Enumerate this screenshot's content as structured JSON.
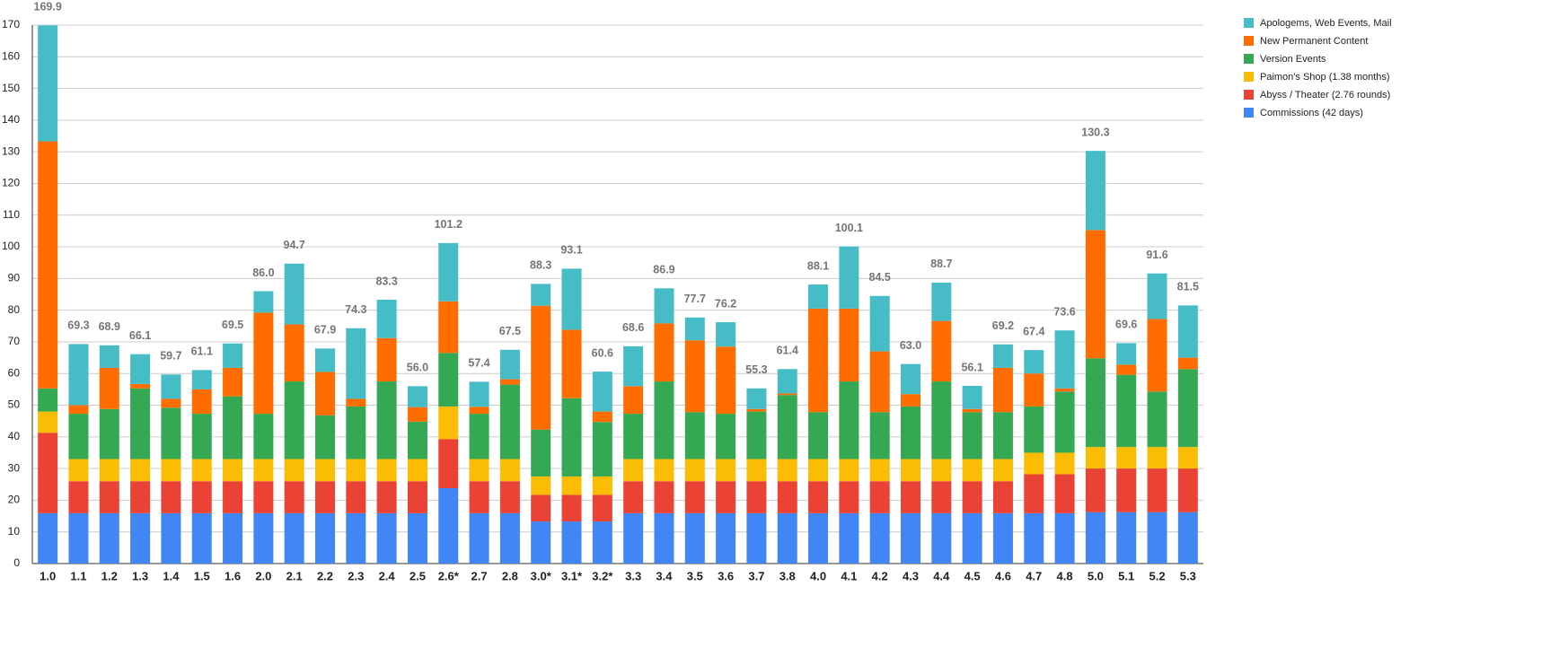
{
  "chart_data": {
    "type": "stacked_bar",
    "categories": [
      "1.0",
      "1.1",
      "1.2",
      "1.3",
      "1.4",
      "1.5",
      "1.6",
      "2.0",
      "2.1",
      "2.2",
      "2.3",
      "2.4",
      "2.5",
      "2.6*",
      "2.7",
      "2.8",
      "3.0*",
      "3.1*",
      "3.2*",
      "3.3",
      "3.4",
      "3.5",
      "3.6",
      "3.7",
      "3.8",
      "4.0",
      "4.1",
      "4.2",
      "4.3",
      "4.4",
      "4.5",
      "4.6",
      "4.7",
      "4.8",
      "5.0",
      "5.1",
      "5.2",
      "5.3"
    ],
    "series": [
      {
        "name": "Apologems, Web Events, Mail",
        "color": "#46bdc6",
        "values": [
          36.6,
          19.3,
          7.1,
          9.4,
          7.7,
          6.1,
          7.7,
          6.8,
          19.2,
          7.4,
          22.3,
          12.1,
          6.6,
          18.4,
          7.9,
          9.3,
          6.9,
          19.3,
          12.6,
          12.6,
          11.1,
          7.2,
          7.7,
          6.5,
          7.7,
          7.6,
          19.6,
          17.5,
          9.5,
          12.1,
          7.3,
          7.4,
          7.4,
          18.3,
          25.0,
          6.8,
          14.4,
          16.5
        ]
      },
      {
        "name": "New Permanent Content",
        "color": "#ff6d01",
        "values": [
          78.0,
          2.7,
          13.0,
          1.4,
          2.8,
          7.7,
          9.0,
          31.9,
          18.0,
          13.7,
          2.4,
          13.7,
          4.6,
          16.3,
          2.2,
          1.7,
          39.1,
          21.6,
          3.3,
          8.7,
          18.3,
          22.7,
          21.2,
          0.8,
          0.5,
          32.7,
          23.0,
          19.2,
          3.9,
          19.1,
          1.0,
          14.0,
          10.4,
          1.0,
          40.5,
          3.2,
          22.9,
          3.6
        ]
      },
      {
        "name": "Version Events",
        "color": "#34a853",
        "values": [
          7.3,
          14.3,
          15.8,
          22.3,
          16.2,
          14.3,
          19.8,
          14.3,
          24.5,
          13.8,
          16.6,
          24.5,
          11.8,
          16.9,
          14.3,
          23.5,
          14.8,
          24.7,
          17.2,
          14.3,
          24.5,
          14.8,
          14.3,
          15.0,
          20.2,
          14.8,
          24.5,
          14.8,
          16.6,
          24.5,
          14.8,
          14.8,
          14.6,
          19.3,
          28.0,
          22.8,
          17.5,
          24.6
        ]
      },
      {
        "name": "Paimon's Shop (1.38 months)",
        "color": "#fbbc04",
        "values": [
          6.7,
          7.0,
          7.0,
          7.0,
          7.0,
          7.0,
          7.0,
          7.0,
          7.0,
          7.0,
          7.0,
          7.0,
          7.0,
          10.3,
          7.0,
          7.0,
          5.8,
          5.8,
          5.8,
          7.0,
          7.0,
          7.0,
          7.0,
          7.0,
          7.0,
          7.0,
          7.0,
          7.0,
          7.0,
          7.0,
          7.0,
          7.0,
          6.8,
          6.8,
          6.8,
          6.8,
          6.8,
          6.8
        ]
      },
      {
        "name": "Abyss / Theater (2.76 rounds)",
        "color": "#ea4335",
        "values": [
          25.4,
          10.1,
          10.1,
          10.1,
          10.1,
          10.1,
          10.1,
          10.1,
          10.1,
          10.1,
          10.1,
          10.1,
          10.1,
          15.5,
          10.1,
          10.1,
          8.4,
          8.4,
          8.4,
          10.1,
          10.1,
          10.1,
          10.1,
          10.1,
          10.1,
          10.1,
          10.1,
          10.1,
          10.1,
          10.1,
          10.1,
          10.1,
          12.3,
          12.3,
          13.8,
          13.8,
          13.8,
          13.8
        ]
      },
      {
        "name": "Commissions (42 days)",
        "color": "#4285f4",
        "values": [
          15.9,
          15.9,
          15.9,
          15.9,
          15.9,
          15.9,
          15.9,
          15.9,
          15.9,
          15.9,
          15.9,
          15.9,
          15.9,
          23.8,
          15.9,
          15.9,
          13.3,
          13.3,
          13.3,
          15.9,
          15.9,
          15.9,
          15.9,
          15.9,
          15.9,
          15.9,
          15.9,
          15.9,
          15.9,
          15.9,
          15.9,
          15.9,
          15.9,
          15.9,
          16.2,
          16.2,
          16.2,
          16.2
        ]
      }
    ],
    "totals": [
      169.9,
      69.3,
      68.9,
      66.1,
      59.7,
      61.1,
      69.5,
      86.0,
      94.7,
      67.9,
      74.3,
      83.3,
      56.0,
      101.2,
      57.4,
      67.5,
      88.3,
      93.1,
      60.6,
      68.6,
      86.9,
      77.7,
      76.2,
      55.3,
      61.4,
      88.1,
      100.1,
      84.5,
      63.0,
      88.7,
      56.1,
      69.2,
      67.4,
      73.6,
      130.3,
      69.6,
      91.6,
      81.5
    ],
    "total_labels": [
      "169.9",
      "69.3",
      "68.9",
      "66.1",
      "59.7",
      "61.1",
      "69.5",
      "86.0",
      "94.7",
      "67.9",
      "74.3",
      "83.3",
      "56.0",
      "101.2",
      "57.4",
      "67.5",
      "88.3",
      "93.1",
      "60.6",
      "68.6",
      "86.9",
      "77.7",
      "76.2",
      "55.3",
      "61.4",
      "88.1",
      "100.1",
      "84.5",
      "63.0",
      "88.7",
      "56.1",
      "69.2",
      "67.4",
      "73.6",
      "130.3",
      "69.6",
      "91.6",
      "81.5"
    ],
    "ylim": [
      0,
      170
    ],
    "yticks": [
      0,
      10,
      20,
      30,
      40,
      50,
      60,
      70,
      80,
      90,
      100,
      110,
      120,
      130,
      140,
      150,
      160,
      170
    ],
    "grid": true,
    "legend": "right"
  }
}
